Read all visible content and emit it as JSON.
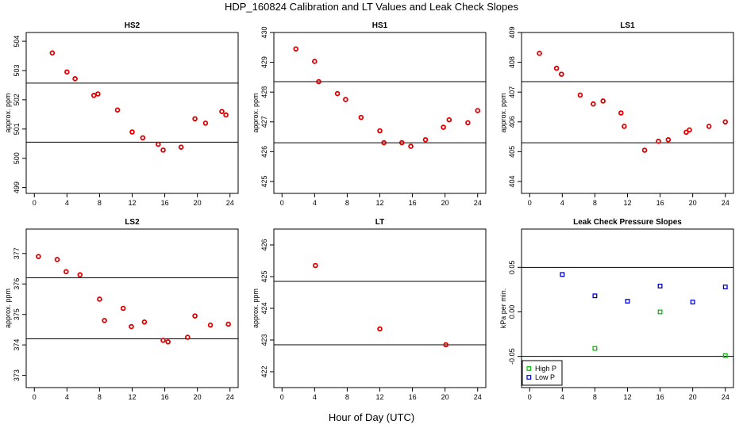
{
  "figure": {
    "title": "HDP_160824  Calibration and LT Values and Leak Check Slopes",
    "xlabel": "Hour of Day (UTC)"
  },
  "chart_data": [
    {
      "type": "scatter",
      "title": "HS2",
      "ylabel": "approx. ppm",
      "xlim": [
        -1,
        25
      ],
      "ylim": [
        498.8,
        504.3
      ],
      "xticks": [
        0,
        4,
        8,
        12,
        16,
        20,
        24
      ],
      "yticks": [
        499,
        500,
        501,
        502,
        503,
        504
      ],
      "hlines": [
        502.57,
        500.55
      ],
      "series": [
        {
          "name": "HS2",
          "color": "#e00000",
          "x": [
            2.2,
            4.0,
            5.0,
            7.3,
            7.8,
            10.2,
            12.0,
            13.3,
            15.2,
            15.8,
            18.0,
            19.7,
            21.0,
            23.0,
            23.5
          ],
          "y": [
            503.6,
            502.95,
            502.72,
            502.15,
            502.2,
            501.65,
            500.9,
            500.7,
            500.48,
            500.28,
            500.38,
            501.35,
            501.2,
            501.6,
            501.48
          ]
        }
      ]
    },
    {
      "type": "scatter",
      "title": "HS1",
      "ylabel": "approx. ppm",
      "xlim": [
        -1,
        25
      ],
      "ylim": [
        424.6,
        430.0
      ],
      "xticks": [
        0,
        4,
        8,
        12,
        16,
        20,
        24
      ],
      "yticks": [
        425,
        426,
        427,
        428,
        429,
        430
      ],
      "hlines": [
        428.35,
        426.3
      ],
      "series": [
        {
          "name": "HS1",
          "color": "#e00000",
          "x": [
            1.7,
            4.0,
            4.5,
            6.8,
            7.8,
            9.7,
            12.0,
            12.5,
            14.7,
            15.8,
            17.6,
            19.8,
            20.5,
            22.8,
            24.0
          ],
          "y": [
            429.45,
            429.03,
            428.35,
            427.95,
            427.75,
            427.15,
            426.7,
            426.3,
            426.3,
            426.18,
            426.4,
            426.82,
            427.07,
            426.97,
            427.38
          ]
        }
      ]
    },
    {
      "type": "scatter",
      "title": "LS1",
      "ylabel": "approx. ppm",
      "xlim": [
        -1,
        25
      ],
      "ylim": [
        403.6,
        409.0
      ],
      "xticks": [
        0,
        4,
        8,
        12,
        16,
        20,
        24
      ],
      "yticks": [
        404,
        405,
        406,
        407,
        408,
        409
      ],
      "hlines": [
        407.35,
        405.3
      ],
      "series": [
        {
          "name": "LS1",
          "color": "#e00000",
          "x": [
            1.2,
            3.3,
            3.9,
            6.2,
            7.8,
            9.0,
            11.2,
            11.6,
            14.1,
            15.8,
            17.0,
            19.2,
            19.6,
            22.0,
            24.0
          ],
          "y": [
            408.3,
            407.8,
            407.6,
            406.9,
            406.6,
            406.7,
            406.3,
            405.85,
            405.05,
            405.35,
            405.4,
            405.65,
            405.73,
            405.85,
            406.0
          ]
        }
      ]
    },
    {
      "type": "scatter",
      "title": "LS2",
      "ylabel": "approx. ppm",
      "xlim": [
        -1,
        25
      ],
      "ylim": [
        372.6,
        377.8
      ],
      "xticks": [
        0,
        4,
        8,
        12,
        16,
        20,
        24
      ],
      "yticks": [
        373,
        374,
        375,
        376,
        377
      ],
      "hlines": [
        376.2,
        374.2
      ],
      "series": [
        {
          "name": "LS2",
          "color": "#e00000",
          "x": [
            0.5,
            2.8,
            3.9,
            5.6,
            8.0,
            8.6,
            10.9,
            11.9,
            13.5,
            15.8,
            16.4,
            18.8,
            19.7,
            21.6,
            23.8
          ],
          "y": [
            376.9,
            376.8,
            376.4,
            376.3,
            375.5,
            374.8,
            375.2,
            374.6,
            374.75,
            374.15,
            374.1,
            374.25,
            374.95,
            374.65,
            374.68
          ]
        }
      ]
    },
    {
      "type": "scatter",
      "title": "LT",
      "ylabel": "approx. ppm",
      "xlim": [
        -1,
        25
      ],
      "ylim": [
        421.5,
        426.5
      ],
      "xticks": [
        0,
        4,
        8,
        12,
        16,
        20,
        24
      ],
      "yticks": [
        422,
        423,
        424,
        425,
        426
      ],
      "hlines": [
        424.85,
        422.85
      ],
      "series": [
        {
          "name": "LT",
          "color": "#e00000",
          "x": [
            4.1,
            12.0,
            20.1
          ],
          "y": [
            425.35,
            423.35,
            422.85
          ]
        }
      ]
    },
    {
      "type": "scatter",
      "title": "Leak Check Pressure Slopes",
      "ylabel": "kPa per min.",
      "xlim": [
        -1,
        25
      ],
      "ylim": [
        -0.085,
        0.093
      ],
      "xticks": [
        0,
        4,
        8,
        12,
        16,
        20,
        24
      ],
      "yticks": [
        -0.05,
        0.0,
        0.05
      ],
      "ytick_labels": [
        "-0.05",
        "0.00",
        "0.05"
      ],
      "hlines": [
        0.05,
        -0.05
      ],
      "legend": "bottom-left",
      "series": [
        {
          "name": "High P",
          "color": "#00c000",
          "x": [
            8.0,
            16.0,
            24.0
          ],
          "y": [
            -0.041,
            0.0,
            -0.049
          ]
        },
        {
          "name": "Low P",
          "color": "#0000dd",
          "x": [
            4.0,
            8.0,
            12.0,
            16.0,
            20.0,
            24.0
          ],
          "y": [
            0.042,
            0.018,
            0.012,
            0.029,
            0.011,
            0.028
          ]
        }
      ]
    }
  ]
}
